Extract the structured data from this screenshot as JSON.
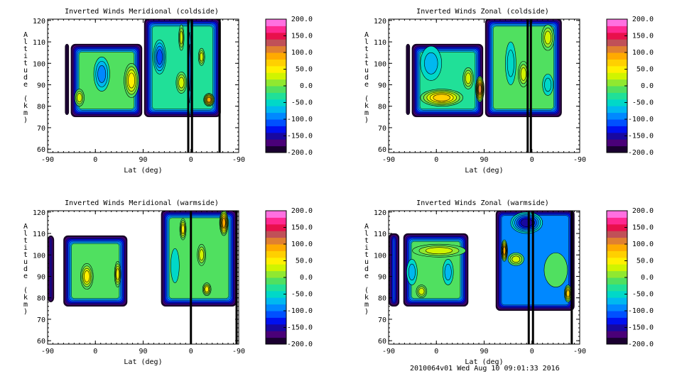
{
  "footer": "2010064v01 Wed Aug 10 09:01:33 2016",
  "chart_data": [
    {
      "type": "heatmap",
      "title": "Inverted Winds Meridional (coldside)",
      "xlabel": "Lat (deg)",
      "ylabel": "Altitude (km)",
      "xticks": [
        "-90",
        "0",
        "90",
        "0",
        "-90"
      ],
      "yticks": [
        "60",
        "70",
        "80",
        "90",
        "100",
        "110",
        "120"
      ],
      "ylim": [
        58.4,
        120.6
      ],
      "colorbar": [
        "200.0",
        "150.0",
        "100.0",
        "50.0",
        "0.0",
        "-50.0",
        "-100.0",
        "-150.0",
        "-200.0"
      ],
      "regions": [
        [
          33,
          40,
          76,
          109,
          -200
        ],
        [
          44,
          178,
          75,
          109,
          -20
        ],
        [
          182,
          326,
          75,
          121,
          -40
        ]
      ],
      "features": [
        [
          102,
          95,
          15,
          8,
          -90
        ],
        [
          158,
          92,
          14,
          8,
          50
        ],
        [
          60,
          84,
          9,
          4,
          20
        ],
        [
          211,
          103,
          12,
          8,
          -110
        ],
        [
          252,
          91,
          10,
          5,
          20
        ],
        [
          252,
          112,
          5,
          6,
          20
        ],
        [
          268,
          98,
          3,
          22,
          -90
        ],
        [
          304,
          83,
          10,
          3,
          80
        ],
        [
          290,
          103,
          6,
          4,
          20
        ]
      ],
      "strips": [
        265,
        272,
        324
      ]
    },
    {
      "type": "heatmap",
      "title": "Inverted Winds Zonal (coldside)",
      "xlabel": "Lat (deg)",
      "ylabel": "Altitude (km)",
      "xticks": [
        "-90",
        "0",
        "90",
        "0",
        "-90"
      ],
      "yticks": [
        "60",
        "70",
        "80",
        "90",
        "100",
        "110",
        "120"
      ],
      "ylim": [
        58.4,
        120.6
      ],
      "colorbar": [
        "200.0",
        "150.0",
        "100.0",
        "50.0",
        "0.0",
        "-50.0",
        "-100.0",
        "-150.0",
        "-200.0"
      ],
      "regions": [
        [
          33,
          40,
          76,
          109,
          -200
        ],
        [
          44,
          178,
          75,
          109,
          -40
        ],
        [
          182,
          326,
          75,
          121,
          -20
        ]
      ],
      "features": [
        [
          100,
          84,
          40,
          4,
          70
        ],
        [
          172,
          88,
          8,
          6,
          100
        ],
        [
          150,
          93,
          10,
          5,
          30
        ],
        [
          80,
          100,
          20,
          8,
          -70
        ],
        [
          254,
          95,
          10,
          6,
          30
        ],
        [
          300,
          112,
          12,
          6,
          20
        ],
        [
          230,
          100,
          10,
          10,
          -60
        ],
        [
          300,
          90,
          10,
          5,
          -60
        ]
      ],
      "strips": [
        262,
        268
      ]
    },
    {
      "type": "heatmap",
      "title": "Inverted Winds Meridional (warmside)",
      "xlabel": "Lat (deg)",
      "ylabel": "Altitude (km)",
      "xticks": [
        "-90",
        "0",
        "90",
        "0",
        "-90"
      ],
      "yticks": [
        "60",
        "70",
        "80",
        "90",
        "100",
        "110",
        "120"
      ],
      "ylim": [
        58.4,
        120.6
      ],
      "colorbar": [
        "200.0",
        "150.0",
        "100.0",
        "50.0",
        "0.0",
        "-50.0",
        "-100.0",
        "-150.0",
        "-200.0"
      ],
      "regions": [
        [
          0,
          12,
          78,
          109,
          -30
        ],
        [
          30,
          150,
          76,
          109,
          -20
        ],
        [
          214,
          356,
          76,
          121,
          -10
        ]
      ],
      "features": [
        [
          74,
          90,
          12,
          6,
          50
        ],
        [
          132,
          91,
          6,
          6,
          50
        ],
        [
          255,
          112,
          6,
          5,
          50
        ],
        [
          332,
          115,
          8,
          6,
          90
        ],
        [
          290,
          100,
          8,
          5,
          30
        ],
        [
          240,
          95,
          8,
          8,
          -50
        ],
        [
          300,
          84,
          8,
          3,
          40
        ]
      ],
      "strips": [
        270,
        356
      ]
    },
    {
      "type": "heatmap",
      "title": "Inverted Winds Zonal (warmside)",
      "xlabel": "Lat (deg)",
      "ylabel": "Altitude (km)",
      "xticks": [
        "-90",
        "0",
        "90",
        "0",
        "-90"
      ],
      "yticks": [
        "60",
        "70",
        "80",
        "90",
        "100",
        "110",
        "120"
      ],
      "ylim": [
        58.4,
        120.6
      ],
      "colorbar": [
        "200.0",
        "150.0",
        "100.0",
        "50.0",
        "0.0",
        "-50.0",
        "-100.0",
        "-150.0",
        "-200.0"
      ],
      "regions": [
        [
          0,
          20,
          76,
          110,
          -30
        ],
        [
          28,
          150,
          76,
          110,
          -20
        ],
        [
          202,
          350,
          74,
          121,
          -90
        ]
      ],
      "features": [
        [
          95,
          102,
          50,
          3,
          30
        ],
        [
          44,
          92,
          10,
          6,
          -70
        ],
        [
          112,
          92,
          10,
          6,
          -70
        ],
        [
          62,
          83,
          10,
          3,
          30
        ],
        [
          218,
          102,
          6,
          5,
          80
        ],
        [
          240,
          98,
          15,
          3,
          30
        ],
        [
          315,
          93,
          22,
          8,
          -20
        ],
        [
          338,
          82,
          7,
          4,
          60
        ],
        [
          260,
          115,
          30,
          5,
          -150
        ]
      ],
      "strips": [
        264,
        272,
        345
      ]
    }
  ]
}
